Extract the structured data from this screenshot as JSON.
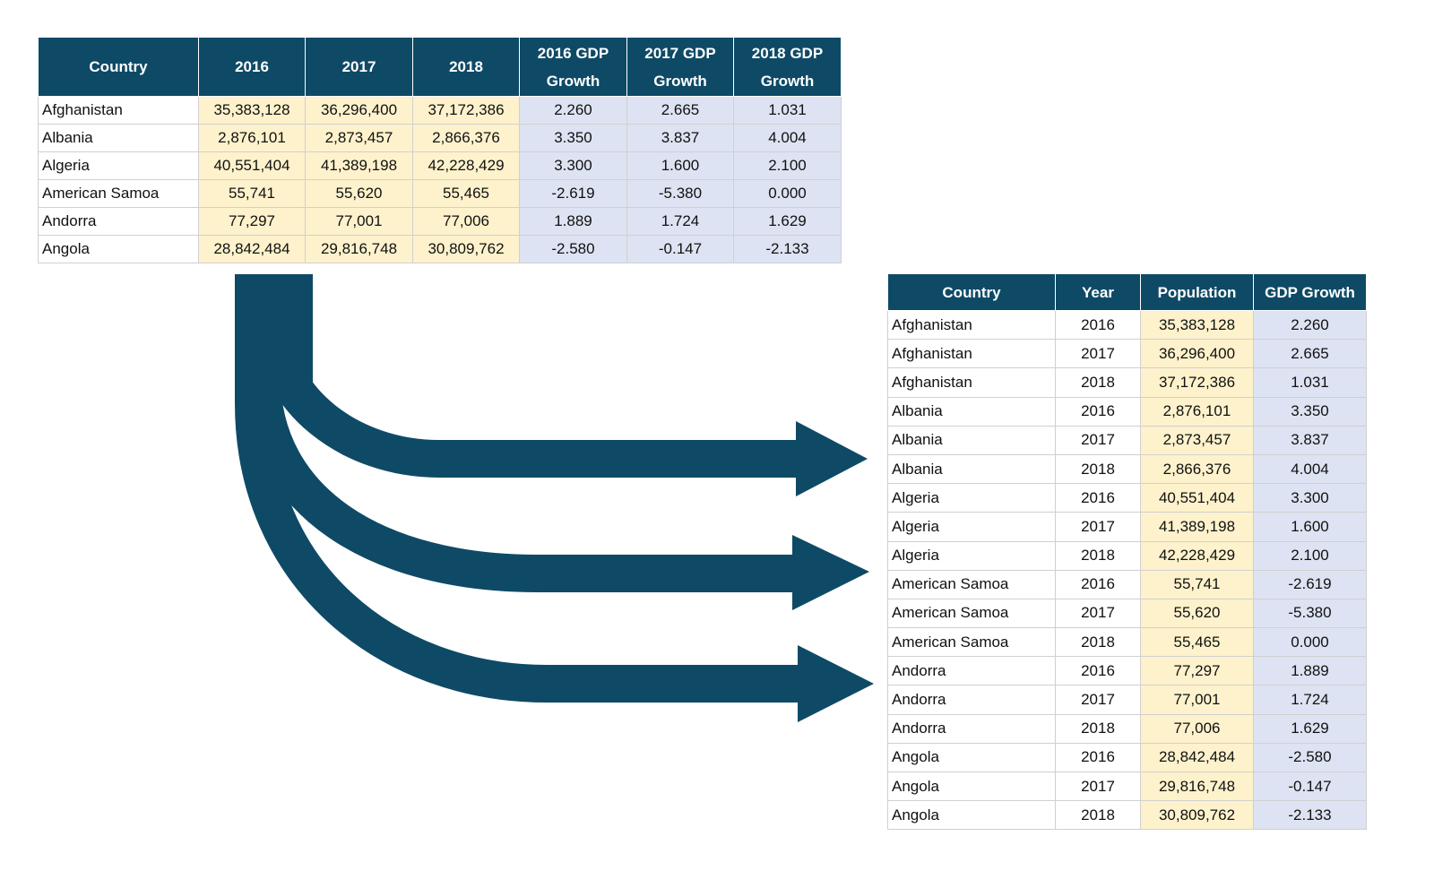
{
  "left_table": {
    "columns": [
      "Country",
      "2016",
      "2017",
      "2018",
      "2016 GDP Growth",
      "2017 GDP Growth",
      "2018 GDP Growth"
    ],
    "rows": [
      [
        "Afghanistan",
        "35,383,128",
        "36,296,400",
        "37,172,386",
        "2.260",
        "2.665",
        "1.031"
      ],
      [
        "Albania",
        "2,876,101",
        "2,873,457",
        "2,866,376",
        "3.350",
        "3.837",
        "4.004"
      ],
      [
        "Algeria",
        "40,551,404",
        "41,389,198",
        "42,228,429",
        "3.300",
        "1.600",
        "2.100"
      ],
      [
        "American Samoa",
        "55,741",
        "55,620",
        "55,465",
        "-2.619",
        "-5.380",
        "0.000"
      ],
      [
        "Andorra",
        "77,297",
        "77,001",
        "77,006",
        "1.889",
        "1.724",
        "1.629"
      ],
      [
        "Angola",
        "28,842,484",
        "29,816,748",
        "30,809,762",
        "-2.580",
        "-0.147",
        "-2.133"
      ]
    ]
  },
  "right_table": {
    "columns": [
      "Country",
      "Year",
      "Population",
      "GDP Growth"
    ],
    "rows": [
      [
        "Afghanistan",
        "2016",
        "35,383,128",
        "2.260"
      ],
      [
        "Afghanistan",
        "2017",
        "36,296,400",
        "2.665"
      ],
      [
        "Afghanistan",
        "2018",
        "37,172,386",
        "1.031"
      ],
      [
        "Albania",
        "2016",
        "2,876,101",
        "3.350"
      ],
      [
        "Albania",
        "2017",
        "2,873,457",
        "3.837"
      ],
      [
        "Albania",
        "2018",
        "2,866,376",
        "4.004"
      ],
      [
        "Algeria",
        "2016",
        "40,551,404",
        "3.300"
      ],
      [
        "Algeria",
        "2017",
        "41,389,198",
        "1.600"
      ],
      [
        "Algeria",
        "2018",
        "42,228,429",
        "2.100"
      ],
      [
        "American Samoa",
        "2016",
        "55,741",
        "-2.619"
      ],
      [
        "American Samoa",
        "2017",
        "55,620",
        "-5.380"
      ],
      [
        "American Samoa",
        "2018",
        "55,465",
        "0.000"
      ],
      [
        "Andorra",
        "2016",
        "77,297",
        "1.889"
      ],
      [
        "Andorra",
        "2017",
        "77,001",
        "1.724"
      ],
      [
        "Andorra",
        "2018",
        "77,006",
        "1.629"
      ],
      [
        "Angola",
        "2016",
        "28,842,484",
        "-2.580"
      ],
      [
        "Angola",
        "2017",
        "29,816,748",
        "-0.147"
      ],
      [
        "Angola",
        "2018",
        "30,809,762",
        "-2.133"
      ]
    ]
  }
}
